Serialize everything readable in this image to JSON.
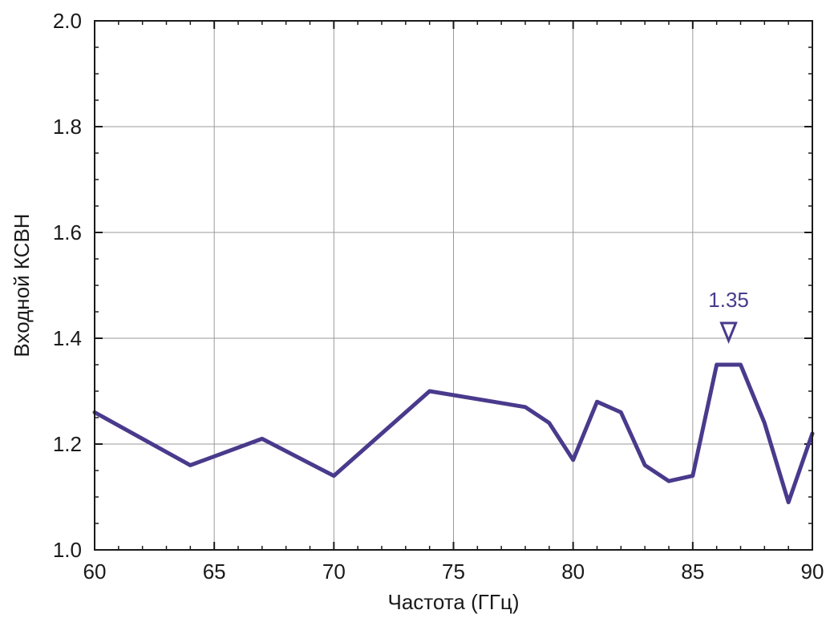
{
  "chart_data": {
    "type": "line",
    "xlabel": "Частота (ГГц)",
    "ylabel": "Входной КСВН",
    "xlim": [
      60,
      90
    ],
    "ylim": [
      1.0,
      2.0
    ],
    "xticks": [
      60,
      65,
      70,
      75,
      80,
      85,
      90
    ],
    "yticks": [
      1.0,
      1.2,
      1.4,
      1.6,
      1.8,
      2.0
    ],
    "ytick_labels": [
      "1.0",
      "1.2",
      "1.4",
      "1.6",
      "1.8",
      "2.0"
    ],
    "grid": true,
    "series": [
      {
        "color": "#4a3a8c",
        "x": [
          60,
          64,
          67,
          70,
          74,
          78,
          79,
          80,
          81,
          82,
          83,
          84,
          85,
          86,
          87,
          88,
          89,
          90
        ],
        "y": [
          1.26,
          1.16,
          1.21,
          1.14,
          1.3,
          1.27,
          1.24,
          1.17,
          1.28,
          1.26,
          1.16,
          1.13,
          1.14,
          1.35,
          1.35,
          1.24,
          1.09,
          1.22
        ]
      }
    ],
    "annotation": {
      "text": "1.35",
      "x": 86.5,
      "y": 1.35,
      "marker": "down-triangle",
      "color": "#4a3a8c"
    }
  }
}
